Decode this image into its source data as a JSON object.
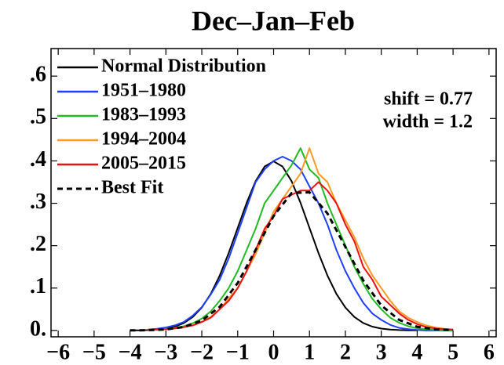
{
  "chart_data": {
    "type": "line",
    "title": "Dec–Jan–Feb",
    "annotations": [
      "shift = 0.77",
      "width = 1.2"
    ],
    "xlim": [
      -6.2,
      6.2
    ],
    "ylim": [
      -0.015,
      0.665
    ],
    "xticks": [
      {
        "value": -6,
        "label": "−6"
      },
      {
        "value": -5,
        "label": "−5"
      },
      {
        "value": -4,
        "label": "−4"
      },
      {
        "value": -3,
        "label": "−3"
      },
      {
        "value": -2,
        "label": "−2"
      },
      {
        "value": -1,
        "label": "−1"
      },
      0,
      1,
      2,
      3,
      4,
      5,
      6
    ],
    "yticks": [
      {
        "value": 0,
        "label": "0."
      },
      {
        "value": 0.1,
        "label": ".1"
      },
      {
        "value": 0.2,
        "label": ".2"
      },
      {
        "value": 0.3,
        "label": ".3"
      },
      {
        "value": 0.4,
        "label": ".4"
      },
      {
        "value": 0.5,
        "label": ".5"
      },
      {
        "value": 0.6,
        "label": ".6"
      }
    ],
    "legend": "upper left",
    "series": [
      {
        "name": "Normal Distribution",
        "color": "#000000",
        "linestyle": "solid",
        "x": [
          -4,
          -3.75,
          -3.5,
          -3.25,
          -3,
          -2.75,
          -2.5,
          -2.25,
          -2,
          -1.75,
          -1.5,
          -1.25,
          -1,
          -0.75,
          -0.5,
          -0.25,
          0,
          0.25,
          0.5,
          0.75,
          1,
          1.25,
          1.5,
          1.75,
          2,
          2.25,
          2.5,
          2.75,
          3,
          3.25,
          3.5,
          3.75,
          4
        ],
        "values": [
          0.0001,
          0.0004,
          0.0009,
          0.002,
          0.0044,
          0.0091,
          0.0175,
          0.0317,
          0.054,
          0.0863,
          0.1295,
          0.1826,
          0.242,
          0.3011,
          0.3521,
          0.3867,
          0.3989,
          0.3867,
          0.3521,
          0.3011,
          0.242,
          0.1826,
          0.1295,
          0.0863,
          0.054,
          0.0317,
          0.0175,
          0.0091,
          0.0044,
          0.002,
          0.0009,
          0.0004,
          0.0001
        ]
      },
      {
        "name": "1951–1980",
        "color": "#1f3fff",
        "linestyle": "solid",
        "x": [
          -3.5,
          -3.25,
          -3,
          -2.75,
          -2.5,
          -2.25,
          -2,
          -1.75,
          -1.5,
          -1.25,
          -1,
          -0.75,
          -0.5,
          -0.25,
          0,
          0.25,
          0.5,
          0.75,
          1,
          1.25,
          1.5,
          1.75,
          2,
          2.25,
          2.5,
          2.75,
          3,
          3.25,
          3.5,
          3.75,
          4,
          4.25,
          4.5,
          4.75,
          5
        ],
        "values": [
          0.002,
          0.004,
          0.007,
          0.012,
          0.02,
          0.035,
          0.055,
          0.085,
          0.12,
          0.17,
          0.23,
          0.29,
          0.35,
          0.38,
          0.4,
          0.41,
          0.4,
          0.38,
          0.34,
          0.3,
          0.25,
          0.19,
          0.14,
          0.1,
          0.065,
          0.04,
          0.025,
          0.013,
          0.006,
          0.003,
          0.001,
          0,
          0,
          0,
          0
        ]
      },
      {
        "name": "1983–1993",
        "color": "#22bb22",
        "linestyle": "solid",
        "x": [
          -3.5,
          -3.25,
          -3,
          -2.75,
          -2.5,
          -2.25,
          -2,
          -1.75,
          -1.5,
          -1.25,
          -1,
          -0.75,
          -0.5,
          -0.25,
          0,
          0.25,
          0.5,
          0.75,
          1,
          1.25,
          1.5,
          1.75,
          2,
          2.25,
          2.5,
          2.75,
          3,
          3.25,
          3.5,
          3.75,
          4,
          4.25,
          4.5,
          4.75,
          5
        ],
        "values": [
          0.001,
          0.002,
          0.004,
          0.006,
          0.01,
          0.017,
          0.028,
          0.045,
          0.07,
          0.1,
          0.14,
          0.19,
          0.24,
          0.3,
          0.33,
          0.36,
          0.39,
          0.43,
          0.38,
          0.36,
          0.3,
          0.25,
          0.2,
          0.15,
          0.11,
          0.075,
          0.05,
          0.03,
          0.018,
          0.01,
          0.005,
          0.003,
          0.001,
          0,
          0
        ]
      },
      {
        "name": "1994–2004",
        "color": "#ff9922",
        "linestyle": "solid",
        "x": [
          -3.5,
          -3.25,
          -3,
          -2.75,
          -2.5,
          -2.25,
          -2,
          -1.75,
          -1.5,
          -1.25,
          -1,
          -0.75,
          -0.5,
          -0.25,
          0,
          0.25,
          0.5,
          0.75,
          1,
          1.25,
          1.5,
          1.75,
          2,
          2.25,
          2.5,
          2.75,
          3,
          3.25,
          3.5,
          3.75,
          4,
          4.25,
          4.5,
          4.75,
          5
        ],
        "values": [
          0.001,
          0.002,
          0.003,
          0.005,
          0.008,
          0.012,
          0.02,
          0.032,
          0.05,
          0.075,
          0.1,
          0.14,
          0.18,
          0.23,
          0.28,
          0.31,
          0.34,
          0.37,
          0.43,
          0.37,
          0.35,
          0.3,
          0.26,
          0.22,
          0.17,
          0.13,
          0.1,
          0.07,
          0.045,
          0.03,
          0.02,
          0.012,
          0.007,
          0.004,
          0.002
        ]
      },
      {
        "name": "2005–2015",
        "color": "#ee1111",
        "linestyle": "solid",
        "x": [
          -3.5,
          -3.25,
          -3,
          -2.75,
          -2.5,
          -2.25,
          -2,
          -1.75,
          -1.5,
          -1.25,
          -1,
          -0.75,
          -0.5,
          -0.25,
          0,
          0.25,
          0.5,
          0.75,
          1,
          1.25,
          1.5,
          1.75,
          2,
          2.25,
          2.5,
          2.75,
          3,
          3.25,
          3.5,
          3.75,
          4,
          4.25,
          4.5,
          4.75,
          5
        ],
        "values": [
          0.001,
          0.002,
          0.003,
          0.005,
          0.008,
          0.012,
          0.02,
          0.03,
          0.05,
          0.07,
          0.1,
          0.14,
          0.19,
          0.24,
          0.27,
          0.31,
          0.32,
          0.33,
          0.33,
          0.35,
          0.33,
          0.3,
          0.25,
          0.21,
          0.15,
          0.12,
          0.08,
          0.06,
          0.04,
          0.025,
          0.015,
          0.008,
          0.005,
          0.003,
          0.002
        ]
      },
      {
        "name": "Best Fit",
        "color": "#000000",
        "linestyle": "dashed",
        "x": [
          -4,
          -3.5,
          -3,
          -2.5,
          -2,
          -1.5,
          -1,
          -0.5,
          0,
          0.5,
          1,
          1.5,
          2,
          2.5,
          3,
          3.5,
          4,
          4.5,
          5
        ],
        "values": [
          0.0001,
          0.0006,
          0.0024,
          0.0081,
          0.0232,
          0.0556,
          0.112,
          0.19,
          0.27,
          0.324,
          0.326,
          0.276,
          0.197,
          0.1176,
          0.059,
          0.025,
          0.0089,
          0.0027,
          0.0007
        ]
      }
    ]
  }
}
